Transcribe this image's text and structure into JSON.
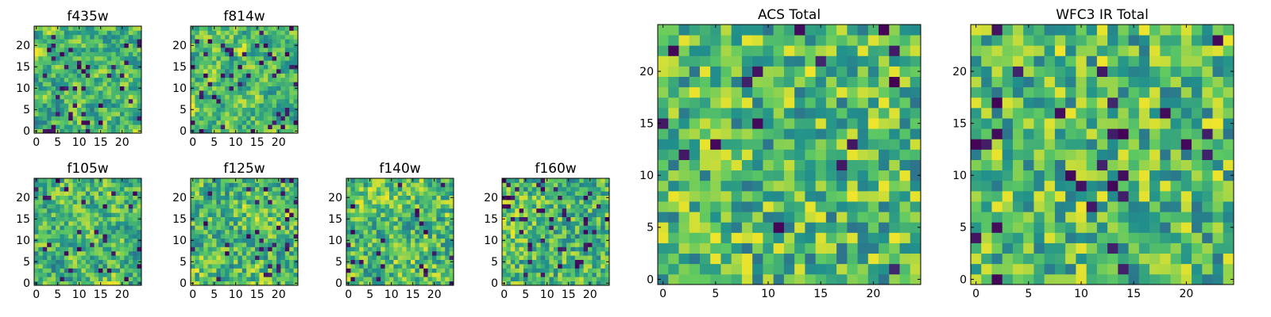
{
  "chart_data": [
    {
      "type": "heatmap",
      "title": "f435w",
      "size": 25,
      "seed": 435,
      "scale": 3,
      "low_frac": 0.06,
      "xticks": [
        "0",
        "5",
        "10",
        "15",
        "20"
      ],
      "yticks": [
        "0",
        "5",
        "10",
        "15",
        "20"
      ],
      "xlim": [
        0,
        25
      ],
      "ylim": [
        0,
        25
      ]
    },
    {
      "type": "heatmap",
      "title": "f814w",
      "size": 25,
      "seed": 814,
      "scale": 3,
      "low_frac": 0.06,
      "xticks": [
        "0",
        "5",
        "10",
        "15",
        "20"
      ],
      "yticks": [
        "0",
        "5",
        "10",
        "15",
        "20"
      ],
      "xlim": [
        0,
        25
      ],
      "ylim": [
        0,
        25
      ]
    },
    {
      "type": "heatmap",
      "title": "f105w",
      "size": 25,
      "seed": 105,
      "scale": 4,
      "low_frac": 0.05,
      "xticks": [
        "0",
        "5",
        "10",
        "15",
        "20"
      ],
      "yticks": [
        "0",
        "5",
        "10",
        "15",
        "20"
      ],
      "xlim": [
        0,
        25
      ],
      "ylim": [
        0,
        25
      ]
    },
    {
      "type": "heatmap",
      "title": "f125w",
      "size": 25,
      "seed": 125,
      "scale": 5,
      "low_frac": 0.05,
      "xticks": [
        "0",
        "5",
        "10",
        "15",
        "20"
      ],
      "yticks": [
        "0",
        "5",
        "10",
        "15",
        "20"
      ],
      "xlim": [
        0,
        25
      ],
      "ylim": [
        0,
        25
      ]
    },
    {
      "type": "heatmap",
      "title": "f140w",
      "size": 25,
      "seed": 140,
      "scale": 5,
      "low_frac": 0.04,
      "xticks": [
        "0",
        "5",
        "10",
        "15",
        "20"
      ],
      "yticks": [
        "0",
        "5",
        "10",
        "15",
        "20"
      ],
      "xlim": [
        0,
        25
      ],
      "ylim": [
        0,
        25
      ]
    },
    {
      "type": "heatmap",
      "title": "f160w",
      "size": 25,
      "seed": 160,
      "scale": 6,
      "low_frac": 0.06,
      "xticks": [
        "0",
        "5",
        "10",
        "15",
        "20"
      ],
      "yticks": [
        "0",
        "5",
        "10",
        "15",
        "20"
      ],
      "xlim": [
        0,
        25
      ],
      "ylim": [
        0,
        25
      ]
    },
    {
      "type": "heatmap",
      "title": "ACS Total",
      "size": 25,
      "seed": 901,
      "scale": 2,
      "low_frac": 0.03,
      "xticks": [
        "0",
        "5",
        "10",
        "15",
        "20"
      ],
      "yticks": [
        "0",
        "5",
        "10",
        "15",
        "20"
      ],
      "xlim": [
        0,
        25
      ],
      "ylim": [
        0,
        25
      ]
    },
    {
      "type": "heatmap",
      "title": "WFC3 IR Total",
      "size": 25,
      "seed": 902,
      "scale": 2,
      "low_frac": 0.04,
      "xticks": [
        "0",
        "5",
        "10",
        "15",
        "20"
      ],
      "yticks": [
        "0",
        "5",
        "10",
        "15",
        "20"
      ],
      "xlim": [
        0,
        25
      ],
      "ylim": [
        0,
        25
      ]
    }
  ],
  "colormap": [
    "#440154",
    "#3b528b",
    "#21918c",
    "#5ec962",
    "#fde725"
  ]
}
